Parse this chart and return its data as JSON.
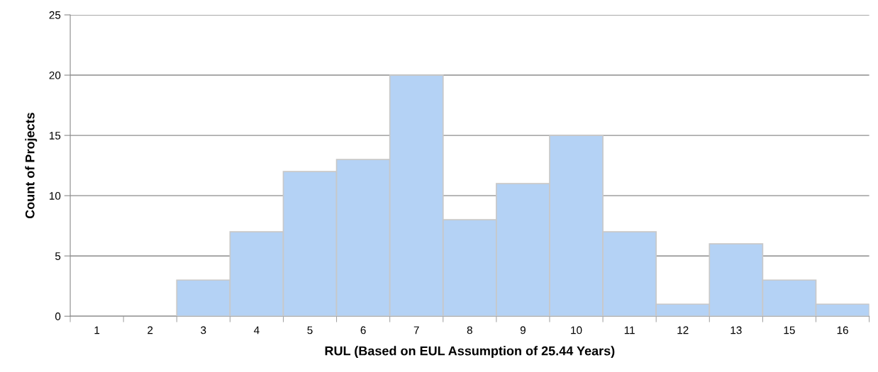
{
  "chart_data": {
    "type": "bar",
    "xlabel": "RUL (Based on EUL Assumption of 25.44 Years)",
    "ylabel": "Count of Projects",
    "categories": [
      "1",
      "2",
      "3",
      "4",
      "5",
      "6",
      "7",
      "8",
      "9",
      "10",
      "11",
      "12",
      "13",
      "15",
      "16"
    ],
    "values": [
      0,
      0,
      3,
      7,
      12,
      13,
      20,
      8,
      11,
      15,
      7,
      1,
      6,
      3,
      1
    ],
    "color": "#b4d2f5",
    "ylim": [
      0,
      25
    ],
    "yticks": [
      0,
      5,
      10,
      15,
      20,
      25
    ],
    "grid": "y"
  }
}
